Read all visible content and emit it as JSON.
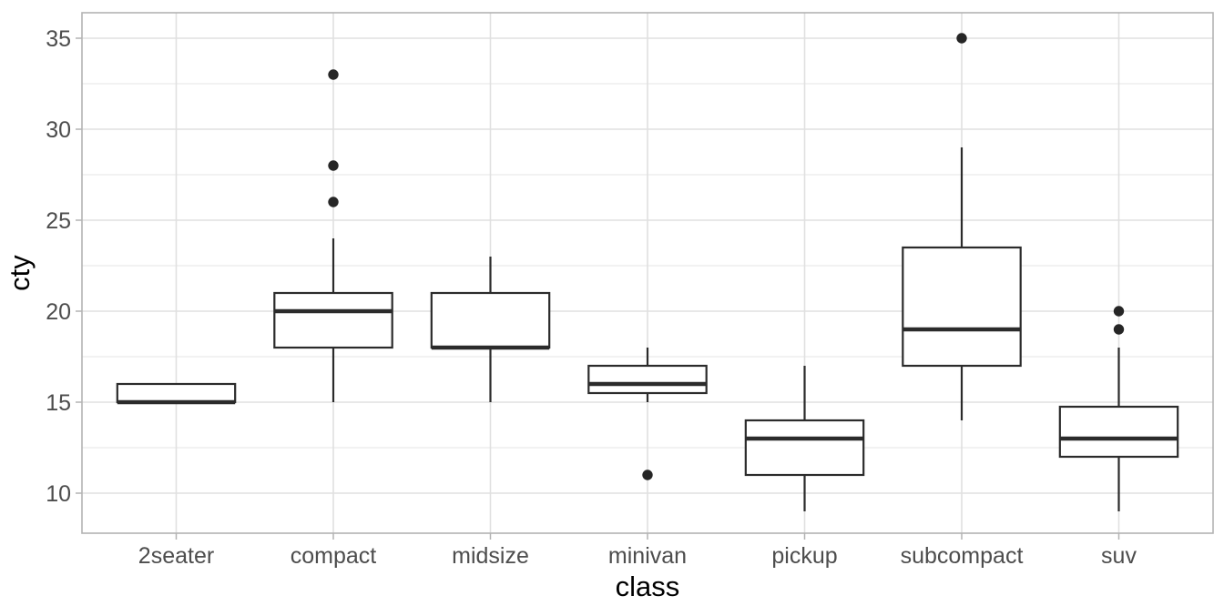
{
  "chart_data": {
    "type": "boxplot",
    "title": "",
    "xlabel": "class",
    "ylabel": "cty",
    "categories": [
      "2seater",
      "compact",
      "midsize",
      "minivan",
      "pickup",
      "subcompact",
      "suv"
    ],
    "series": [
      {
        "category": "2seater",
        "whisker_low": 15,
        "q1": 15,
        "median": 15,
        "q3": 16,
        "whisker_high": 16,
        "outliers": []
      },
      {
        "category": "compact",
        "whisker_low": 15,
        "q1": 18,
        "median": 20,
        "q3": 21,
        "whisker_high": 24,
        "outliers": [
          26,
          28,
          33
        ]
      },
      {
        "category": "midsize",
        "whisker_low": 15,
        "q1": 18,
        "median": 18,
        "q3": 21,
        "whisker_high": 23,
        "outliers": []
      },
      {
        "category": "minivan",
        "whisker_low": 15,
        "q1": 15.5,
        "median": 16,
        "q3": 17,
        "whisker_high": 18,
        "outliers": [
          11
        ]
      },
      {
        "category": "pickup",
        "whisker_low": 9,
        "q1": 11,
        "median": 13,
        "q3": 14,
        "whisker_high": 17,
        "outliers": []
      },
      {
        "category": "subcompact",
        "whisker_low": 14,
        "q1": 17,
        "median": 19,
        "q3": 23.5,
        "whisker_high": 29,
        "outliers": [
          35
        ]
      },
      {
        "category": "suv",
        "whisker_low": 9,
        "q1": 12,
        "median": 13,
        "q3": 14.75,
        "whisker_high": 18,
        "outliers": [
          19,
          20
        ]
      }
    ],
    "y_ticks": [
      10,
      15,
      20,
      25,
      30,
      35
    ],
    "y_minor_ticks": [
      12.5,
      17.5,
      22.5,
      27.5,
      32.5
    ],
    "ylim": [
      7.8,
      36.4
    ],
    "grid": {
      "horizontal_major": true,
      "horizontal_minor": true,
      "vertical_major_at_categories": true
    },
    "legend": "none",
    "colors": {
      "background": "#ffffff",
      "panel_background": "#ffffff",
      "panel_border": "#b3b3b3",
      "grid_major": "#e0e0e0",
      "grid_minor": "#e9e9e9",
      "axis_tick_mark": "#b3b3b3",
      "tick_label_text": "#4d4d4d",
      "axis_title_text": "#000000",
      "box_stroke": "#2b2b2b",
      "box_fill": "#ffffff",
      "outlier_fill": "#262626"
    }
  }
}
